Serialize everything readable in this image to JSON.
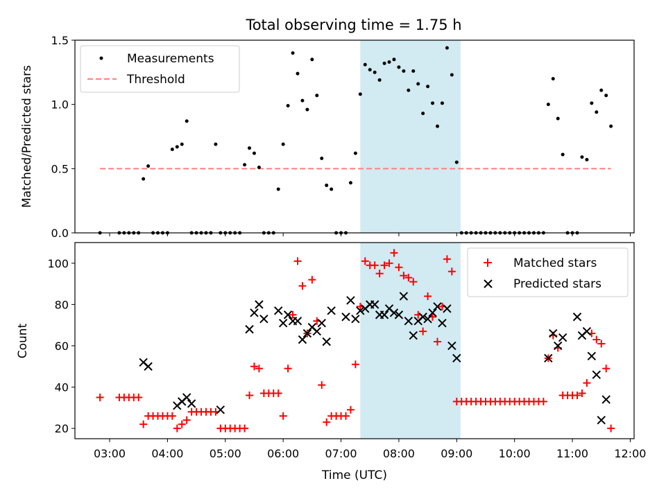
{
  "figure": {
    "title": "Total observing time = 1.75 h"
  },
  "chart_data": [
    {
      "type": "scatter",
      "panel": "top",
      "ylabel": "Matched/Predicted stars",
      "xlim": [
        "02:24",
        "12:04"
      ],
      "ylim": [
        0,
        1.5
      ],
      "yticks": [
        0,
        0.5,
        1.0,
        1.5
      ],
      "ytick_labels": [
        "0.0",
        "0.5",
        "1.0",
        "1.5"
      ],
      "grid": false,
      "legend": "top-left",
      "shaded_interval": {
        "start": "07:20",
        "end": "09:04",
        "color": "#add8e6"
      },
      "series": [
        {
          "name": "Measurements",
          "marker": "dot",
          "color": "#000000",
          "x": [
            "02:50",
            "03:10",
            "03:15",
            "03:20",
            "03:25",
            "03:30",
            "03:35",
            "03:40",
            "03:45",
            "03:50",
            "03:55",
            "04:00",
            "04:05",
            "04:10",
            "04:15",
            "04:20",
            "04:25",
            "04:30",
            "04:35",
            "04:40",
            "04:45",
            "04:50",
            "04:55",
            "05:00",
            "05:05",
            "05:10",
            "05:15",
            "05:20",
            "05:25",
            "05:30",
            "05:35",
            "05:40",
            "05:45",
            "05:50",
            "05:55",
            "06:00",
            "06:05",
            "06:10",
            "06:15",
            "06:20",
            "06:25",
            "06:30",
            "06:35",
            "06:40",
            "06:45",
            "06:50",
            "06:55",
            "07:00",
            "07:05",
            "07:10",
            "07:15",
            "07:20",
            "07:25",
            "07:30",
            "07:35",
            "07:40",
            "07:45",
            "07:50",
            "07:55",
            "08:00",
            "08:05",
            "08:10",
            "08:15",
            "08:20",
            "08:25",
            "08:30",
            "08:35",
            "08:40",
            "08:45",
            "08:50",
            "08:55",
            "09:00",
            "09:05",
            "09:10",
            "09:15",
            "09:20",
            "09:25",
            "09:30",
            "09:35",
            "09:40",
            "09:45",
            "09:50",
            "09:55",
            "10:00",
            "10:05",
            "10:10",
            "10:15",
            "10:20",
            "10:25",
            "10:30",
            "10:35",
            "10:40",
            "10:45",
            "10:50",
            "10:55",
            "11:00",
            "11:05",
            "11:10",
            "11:15",
            "11:20",
            "11:25",
            "11:30",
            "11:35",
            "11:40"
          ],
          "y": [
            0,
            0,
            0,
            0,
            0,
            0,
            0.42,
            0.52,
            0,
            0,
            0,
            0,
            0.65,
            0.67,
            0.69,
            0.87,
            0,
            0,
            0,
            0,
            0,
            0.69,
            0,
            0,
            0,
            0,
            0,
            0.53,
            0.66,
            0.62,
            0.51,
            0,
            0,
            0,
            0.34,
            0.69,
            0.99,
            1.4,
            1.24,
            1.03,
            0.96,
            1.35,
            1.07,
            0.58,
            0.37,
            0.34,
            0,
            0,
            0,
            0.39,
            0.62,
            1.08,
            1.31,
            1.27,
            1.25,
            1.19,
            1.32,
            1.33,
            1.35,
            1.29,
            1.26,
            1.11,
            1.26,
            1.16,
            0.93,
            1.14,
            1.01,
            0.83,
            1.01,
            1.44,
            1.23,
            0.55,
            0,
            0,
            0,
            0,
            0,
            0,
            0,
            0,
            0,
            0,
            0,
            0,
            0,
            0,
            0,
            0,
            0,
            0,
            1.0,
            1.2,
            0.89,
            0.61,
            0,
            0,
            0,
            0.59,
            0.57,
            1.01,
            0.94,
            1.11,
            1.07,
            0.83
          ]
        },
        {
          "name": "Threshold",
          "kind": "line",
          "style": "dashed",
          "color": "#ff7f7f",
          "x": [
            "02:50",
            "11:40"
          ],
          "y": [
            0.5,
            0.5
          ]
        }
      ]
    },
    {
      "type": "scatter",
      "panel": "bottom",
      "xlabel": "Time (UTC)",
      "ylabel": "Count",
      "xlim": [
        "02:24",
        "12:04"
      ],
      "ylim": [
        15,
        110
      ],
      "yticks": [
        20,
        40,
        60,
        80,
        100
      ],
      "xticks": [
        "03:00",
        "04:00",
        "05:00",
        "06:00",
        "07:00",
        "08:00",
        "09:00",
        "10:00",
        "11:00",
        "12:00"
      ],
      "grid": false,
      "legend": "top-right",
      "shaded_interval": {
        "start": "07:20",
        "end": "09:04",
        "color": "#add8e6"
      },
      "series": [
        {
          "name": "Matched stars",
          "marker": "plus",
          "color": "#ff0000",
          "x": [
            "02:50",
            "03:10",
            "03:15",
            "03:20",
            "03:25",
            "03:30",
            "03:35",
            "03:40",
            "03:45",
            "03:50",
            "03:55",
            "04:00",
            "04:05",
            "04:10",
            "04:15",
            "04:20",
            "04:25",
            "04:30",
            "04:35",
            "04:40",
            "04:45",
            "04:50",
            "04:55",
            "05:00",
            "05:05",
            "05:10",
            "05:15",
            "05:20",
            "05:25",
            "05:30",
            "05:35",
            "05:40",
            "05:45",
            "05:50",
            "05:55",
            "06:00",
            "06:05",
            "06:10",
            "06:15",
            "06:20",
            "06:25",
            "06:30",
            "06:35",
            "06:40",
            "06:45",
            "06:50",
            "06:55",
            "07:00",
            "07:05",
            "07:10",
            "07:15",
            "07:20",
            "07:25",
            "07:30",
            "07:35",
            "07:40",
            "07:45",
            "07:50",
            "07:55",
            "08:00",
            "08:05",
            "08:10",
            "08:15",
            "08:20",
            "08:25",
            "08:30",
            "08:35",
            "08:40",
            "08:45",
            "08:50",
            "08:55",
            "09:00",
            "09:05",
            "09:10",
            "09:15",
            "09:20",
            "09:25",
            "09:30",
            "09:35",
            "09:40",
            "09:45",
            "09:50",
            "09:55",
            "10:00",
            "10:05",
            "10:10",
            "10:15",
            "10:20",
            "10:25",
            "10:30",
            "10:35",
            "10:40",
            "10:45",
            "10:50",
            "10:55",
            "11:00",
            "11:05",
            "11:10",
            "11:15",
            "11:20",
            "11:25",
            "11:30",
            "11:35",
            "11:40"
          ],
          "y": [
            35,
            35,
            35,
            35,
            35,
            35,
            22,
            26,
            26,
            26,
            26,
            26,
            26,
            20,
            22,
            24,
            28,
            28,
            28,
            28,
            28,
            28,
            20,
            20,
            20,
            20,
            20,
            20,
            36,
            50,
            49,
            37,
            37,
            37,
            37,
            26,
            49,
            75,
            101,
            89,
            66,
            92,
            72,
            41,
            23,
            26,
            26,
            26,
            26,
            29,
            51,
            79,
            101,
            99,
            99,
            95,
            99,
            100,
            105,
            98,
            94,
            93,
            91,
            75,
            67,
            84,
            74,
            62,
            79,
            102,
            96,
            33,
            33,
            33,
            33,
            33,
            33,
            33,
            33,
            33,
            33,
            33,
            33,
            33,
            33,
            33,
            33,
            33,
            33,
            33,
            54,
            65,
            59,
            36,
            36,
            36,
            36,
            37,
            42,
            66,
            63,
            61,
            49,
            20
          ]
        },
        {
          "name": "Predicted stars",
          "marker": "x",
          "color": "#000000",
          "x": [
            "03:35",
            "03:40",
            "04:10",
            "04:15",
            "04:20",
            "04:25",
            "04:55",
            "05:25",
            "05:30",
            "05:35",
            "05:40",
            "05:55",
            "06:00",
            "06:05",
            "06:10",
            "06:15",
            "06:20",
            "06:25",
            "06:30",
            "06:35",
            "06:40",
            "06:45",
            "06:50",
            "07:05",
            "07:10",
            "07:15",
            "07:20",
            "07:25",
            "07:30",
            "07:35",
            "07:40",
            "07:45",
            "07:50",
            "07:55",
            "08:00",
            "08:05",
            "08:10",
            "08:15",
            "08:20",
            "08:25",
            "08:30",
            "08:35",
            "08:40",
            "08:45",
            "08:50",
            "08:55",
            "09:00",
            "10:35",
            "10:40",
            "10:45",
            "10:50",
            "11:05",
            "11:10",
            "11:15",
            "11:20",
            "11:25",
            "11:30",
            "11:35"
          ],
          "y": [
            52,
            50,
            31,
            33,
            35,
            32,
            29,
            68,
            76,
            80,
            73,
            77,
            71,
            75,
            72,
            72,
            63,
            66,
            69,
            67,
            71,
            62,
            77,
            74,
            82,
            73,
            77,
            78,
            80,
            80,
            75,
            75,
            78,
            76,
            75,
            84,
            72,
            65,
            72,
            74,
            73,
            76,
            79,
            71,
            78,
            60,
            54,
            54,
            66,
            60,
            64,
            74,
            65,
            67,
            55,
            46,
            24,
            34
          ]
        }
      ]
    }
  ]
}
